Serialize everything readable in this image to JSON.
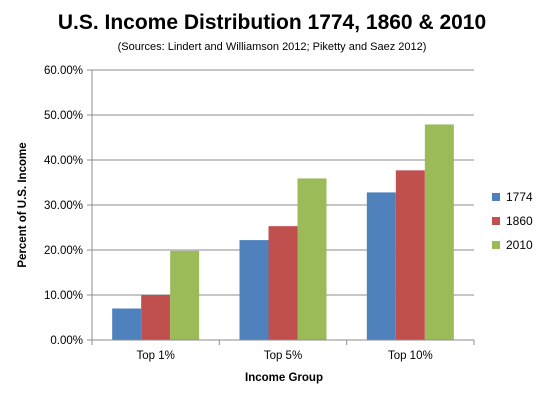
{
  "chart_data": {
    "type": "bar",
    "title": "U.S. Income Distribution 1774, 1860 & 2010",
    "subtitle": "(Sources: Lindert and Williamson 2012; Piketty and Saez 2012)",
    "xlabel": "Income Group",
    "ylabel": "Percent of U.S. Income",
    "categories": [
      "Top 1%",
      "Top 5%",
      "Top 10%"
    ],
    "series": [
      {
        "name": "1774",
        "color": "#4f81bd",
        "values": [
          7.0,
          22.2,
          32.8
        ]
      },
      {
        "name": "1860",
        "color": "#c0504d",
        "values": [
          10.0,
          25.3,
          37.7
        ]
      },
      {
        "name": "2010",
        "color": "#9bbb59",
        "values": [
          19.8,
          35.9,
          47.9
        ]
      }
    ],
    "ylim": [
      0,
      60
    ],
    "yticks": [
      "0.00%",
      "10.00%",
      "20.00%",
      "30.00%",
      "40.00%",
      "50.00%",
      "60.00%"
    ],
    "grid": true,
    "legend_position": "right"
  }
}
